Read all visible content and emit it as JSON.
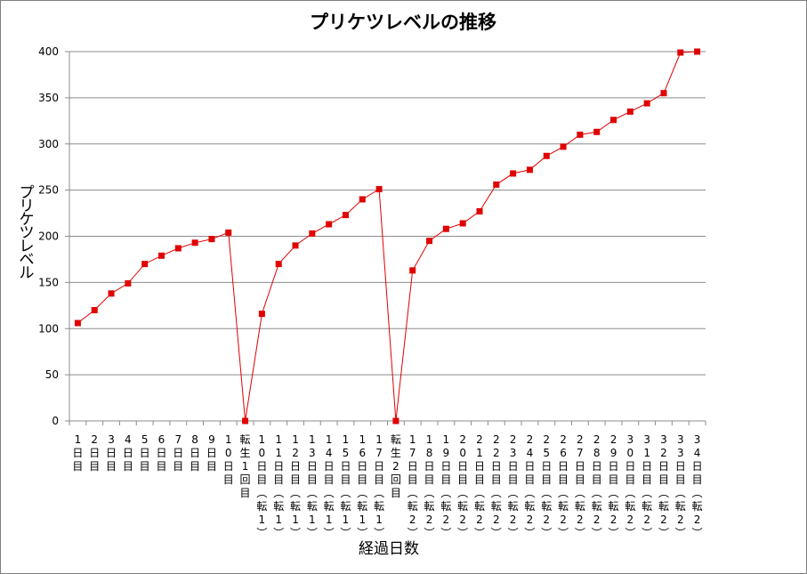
{
  "chart_data": {
    "type": "line",
    "title": "プリケツレベルの推移",
    "xlabel": "経過日数",
    "ylabel": "プリケツレベル",
    "ylim": [
      0,
      400
    ],
    "yticks": [
      0,
      50,
      100,
      150,
      200,
      250,
      300,
      350,
      400
    ],
    "grid": true,
    "legend": "none",
    "line_color": "#e00000",
    "marker_color": "#e00000",
    "categories": [
      "1日目",
      "2日目",
      "3日目",
      "4日目",
      "5日目",
      "6日目",
      "7日目",
      "8日目",
      "9日目",
      "10日目",
      "転生1回目",
      "10日目(転1)",
      "11日目(転1)",
      "12日目(転1)",
      "13日目(転1)",
      "14日目(転1)",
      "15日目(転1)",
      "16日目(転1)",
      "17日目(転1)",
      "転生2回目",
      "17日目(転2)",
      "18日目(転2)",
      "19日目(転2)",
      "20日目(転2)",
      "21日目(転2)",
      "22日目(転2)",
      "23日目(転2)",
      "24日目(転2)",
      "25日目(転2)",
      "26日目(転2)",
      "27日目(転2)",
      "28日目(転2)",
      "29日目(転2)",
      "30日目(転2)",
      "31日目(転2)",
      "32日目(転2)",
      "33日目(転2)",
      "34日目(転2)"
    ],
    "values": [
      106,
      120,
      138,
      149,
      170,
      179,
      187,
      193,
      197,
      204,
      0,
      116,
      170,
      190,
      203,
      213,
      223,
      240,
      251,
      0,
      163,
      195,
      208,
      214,
      227,
      256,
      268,
      272,
      287,
      297,
      310,
      313,
      326,
      335,
      344,
      355,
      399,
      400
    ]
  }
}
